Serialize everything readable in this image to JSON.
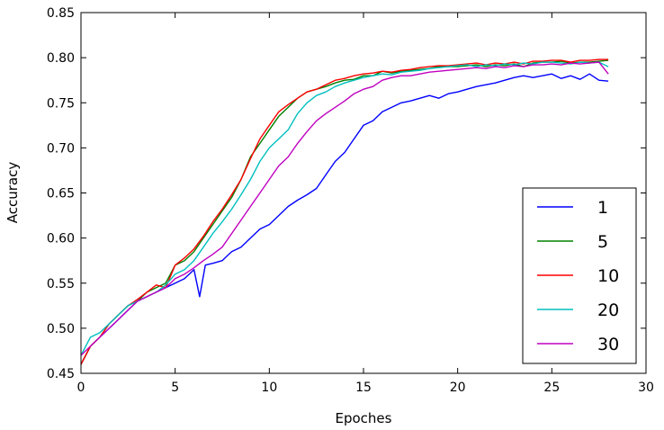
{
  "chart_data": {
    "type": "line",
    "title": "",
    "xlabel": "Epoches",
    "ylabel": "Accuracy",
    "xlim": [
      0,
      30
    ],
    "ylim": [
      0.45,
      0.85
    ],
    "xticks": [
      0,
      5,
      10,
      15,
      20,
      25,
      30
    ],
    "yticks": [
      0.45,
      0.5,
      0.55,
      0.6,
      0.65,
      0.7,
      0.75,
      0.8,
      0.85
    ],
    "ytick_labels": [
      "0.45",
      "0.50",
      "0.55",
      "0.60",
      "0.65",
      "0.70",
      "0.75",
      "0.80",
      "0.85"
    ],
    "grid": false,
    "legend_position": "lower-right",
    "series": [
      {
        "name": "1",
        "color": "#0000ff",
        "x": [
          0,
          0.5,
          1,
          1.5,
          2,
          2.5,
          3,
          3.5,
          4,
          4.5,
          5,
          5.5,
          6,
          6.3,
          6.6,
          7,
          7.5,
          8,
          8.5,
          9,
          9.5,
          10,
          10.5,
          11,
          11.5,
          12,
          12.5,
          13,
          13.5,
          14,
          14.5,
          15,
          15.5,
          16,
          16.5,
          17,
          17.5,
          18,
          18.5,
          19,
          19.5,
          20,
          20.5,
          21,
          21.5,
          22,
          22.5,
          23,
          23.5,
          24,
          24.5,
          25,
          25.5,
          26,
          26.5,
          27,
          27.5,
          28
        ],
        "values": [
          0.46,
          0.48,
          0.49,
          0.5,
          0.51,
          0.52,
          0.53,
          0.535,
          0.54,
          0.545,
          0.55,
          0.555,
          0.565,
          0.535,
          0.57,
          0.572,
          0.575,
          0.585,
          0.59,
          0.6,
          0.61,
          0.615,
          0.625,
          0.635,
          0.642,
          0.648,
          0.655,
          0.67,
          0.685,
          0.695,
          0.71,
          0.725,
          0.73,
          0.74,
          0.745,
          0.75,
          0.752,
          0.755,
          0.758,
          0.755,
          0.76,
          0.762,
          0.765,
          0.768,
          0.77,
          0.772,
          0.775,
          0.778,
          0.78,
          0.778,
          0.78,
          0.782,
          0.777,
          0.78,
          0.776,
          0.782,
          0.775,
          0.774
        ]
      },
      {
        "name": "5",
        "color": "#008000",
        "x": [
          0,
          0.5,
          1,
          1.5,
          2,
          2.5,
          3,
          3.5,
          4,
          4.5,
          5,
          5.5,
          6,
          6.5,
          7,
          7.5,
          8,
          8.5,
          9,
          9.5,
          10,
          10.5,
          11,
          11.5,
          12,
          12.5,
          13,
          13.5,
          14,
          14.5,
          15,
          15.5,
          16,
          16.5,
          17,
          17.5,
          18,
          18.5,
          19,
          19.5,
          20,
          20.5,
          21,
          21.5,
          22,
          22.5,
          23,
          23.5,
          24,
          24.5,
          25,
          25.5,
          26,
          26.5,
          27,
          27.5,
          28
        ],
        "values": [
          0.46,
          0.48,
          0.49,
          0.505,
          0.515,
          0.525,
          0.53,
          0.54,
          0.545,
          0.55,
          0.57,
          0.575,
          0.585,
          0.6,
          0.615,
          0.63,
          0.645,
          0.665,
          0.69,
          0.705,
          0.72,
          0.735,
          0.745,
          0.755,
          0.762,
          0.765,
          0.768,
          0.772,
          0.775,
          0.776,
          0.78,
          0.78,
          0.785,
          0.783,
          0.785,
          0.786,
          0.787,
          0.788,
          0.79,
          0.79,
          0.79,
          0.791,
          0.792,
          0.79,
          0.792,
          0.791,
          0.793,
          0.79,
          0.794,
          0.795,
          0.795,
          0.796,
          0.794,
          0.795,
          0.795,
          0.796,
          0.797
        ]
      },
      {
        "name": "10",
        "color": "#ff0000",
        "x": [
          0,
          0.5,
          1,
          1.5,
          2,
          2.5,
          3,
          3.5,
          4,
          4.5,
          5,
          5.5,
          6,
          6.5,
          7,
          7.5,
          8,
          8.5,
          9,
          9.5,
          10,
          10.5,
          11,
          11.5,
          12,
          12.5,
          13,
          13.5,
          14,
          14.5,
          15,
          15.5,
          16,
          16.5,
          17,
          17.5,
          18,
          18.5,
          19,
          19.5,
          20,
          20.5,
          21,
          21.5,
          22,
          22.5,
          23,
          23.5,
          24,
          24.5,
          25,
          25.5,
          26,
          26.5,
          27,
          27.5,
          28
        ],
        "values": [
          0.46,
          0.48,
          0.49,
          0.505,
          0.515,
          0.525,
          0.532,
          0.54,
          0.548,
          0.545,
          0.57,
          0.578,
          0.588,
          0.602,
          0.618,
          0.632,
          0.648,
          0.665,
          0.688,
          0.71,
          0.725,
          0.74,
          0.748,
          0.755,
          0.762,
          0.765,
          0.77,
          0.775,
          0.777,
          0.78,
          0.782,
          0.783,
          0.785,
          0.784,
          0.786,
          0.787,
          0.789,
          0.79,
          0.791,
          0.791,
          0.792,
          0.793,
          0.794,
          0.792,
          0.794,
          0.793,
          0.795,
          0.793,
          0.796,
          0.796,
          0.797,
          0.797,
          0.795,
          0.797,
          0.797,
          0.798,
          0.798
        ]
      },
      {
        "name": "20",
        "color": "#00bfbf",
        "x": [
          0,
          0.5,
          1,
          1.5,
          2,
          2.5,
          3,
          3.5,
          4,
          4.5,
          5,
          5.5,
          6,
          6.5,
          7,
          7.5,
          8,
          8.5,
          9,
          9.5,
          10,
          10.5,
          11,
          11.5,
          12,
          12.5,
          13,
          13.5,
          14,
          14.5,
          15,
          15.5,
          16,
          16.5,
          17,
          17.5,
          18,
          18.5,
          19,
          19.5,
          20,
          20.5,
          21,
          21.5,
          22,
          22.5,
          23,
          23.5,
          24,
          24.5,
          25,
          25.5,
          26,
          26.5,
          27,
          27.5,
          28
        ],
        "values": [
          0.47,
          0.49,
          0.495,
          0.505,
          0.515,
          0.525,
          0.53,
          0.535,
          0.54,
          0.548,
          0.56,
          0.565,
          0.575,
          0.59,
          0.605,
          0.618,
          0.632,
          0.648,
          0.665,
          0.685,
          0.7,
          0.71,
          0.72,
          0.738,
          0.75,
          0.758,
          0.762,
          0.768,
          0.772,
          0.775,
          0.778,
          0.78,
          0.782,
          0.781,
          0.784,
          0.785,
          0.786,
          0.788,
          0.789,
          0.79,
          0.791,
          0.792,
          0.79,
          0.792,
          0.791,
          0.793,
          0.792,
          0.794,
          0.793,
          0.795,
          0.795,
          0.794,
          0.793,
          0.795,
          0.794,
          0.795,
          0.79
        ]
      },
      {
        "name": "30",
        "color": "#bf00bf",
        "x": [
          0,
          0.5,
          1,
          1.5,
          2,
          2.5,
          3,
          3.5,
          4,
          4.5,
          5,
          5.5,
          6,
          6.5,
          7,
          7.5,
          8,
          8.5,
          9,
          9.5,
          10,
          10.5,
          11,
          11.5,
          12,
          12.5,
          13,
          13.5,
          14,
          14.5,
          15,
          15.5,
          16,
          16.5,
          17,
          17.5,
          18,
          18.5,
          19,
          19.5,
          20,
          20.5,
          21,
          21.5,
          22,
          22.5,
          23,
          23.5,
          24,
          24.5,
          25,
          25.5,
          26,
          26.5,
          27,
          27.5,
          28
        ],
        "values": [
          0.47,
          0.48,
          0.49,
          0.5,
          0.51,
          0.52,
          0.53,
          0.535,
          0.54,
          0.545,
          0.555,
          0.56,
          0.567,
          0.575,
          0.582,
          0.59,
          0.605,
          0.62,
          0.635,
          0.65,
          0.665,
          0.68,
          0.69,
          0.705,
          0.718,
          0.73,
          0.738,
          0.745,
          0.752,
          0.76,
          0.765,
          0.768,
          0.775,
          0.778,
          0.78,
          0.78,
          0.782,
          0.784,
          0.785,
          0.786,
          0.787,
          0.788,
          0.789,
          0.788,
          0.79,
          0.789,
          0.791,
          0.79,
          0.792,
          0.792,
          0.793,
          0.792,
          0.794,
          0.793,
          0.794,
          0.795,
          0.782
        ]
      }
    ]
  }
}
